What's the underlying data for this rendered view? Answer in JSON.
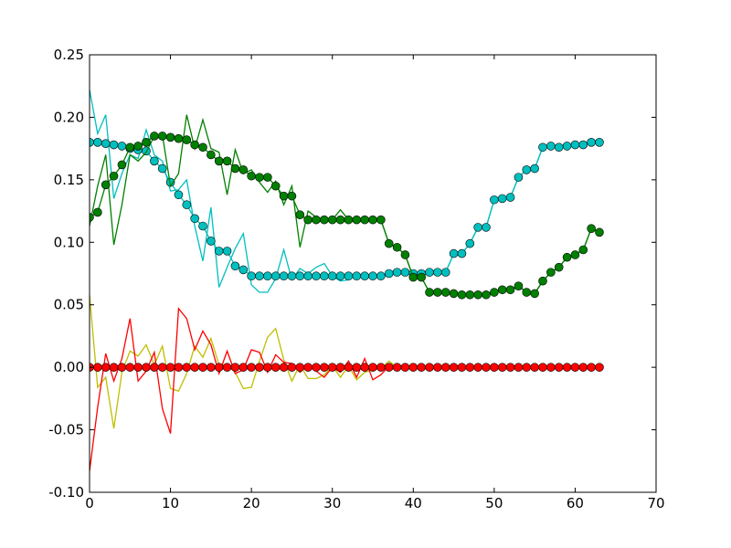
{
  "chart_data": {
    "type": "line",
    "x": [
      0,
      1,
      2,
      3,
      4,
      5,
      6,
      7,
      8,
      9,
      10,
      11,
      12,
      13,
      14,
      15,
      16,
      17,
      18,
      19,
      20,
      21,
      22,
      23,
      24,
      25,
      26,
      27,
      28,
      29,
      30,
      31,
      32,
      33,
      34,
      35,
      36,
      37,
      38,
      39,
      40,
      41,
      42,
      43,
      44,
      45,
      46,
      47,
      48,
      49,
      50,
      51,
      52,
      53,
      54,
      55,
      56,
      57,
      58,
      59,
      60,
      61,
      62,
      63
    ],
    "series": [
      {
        "color": "#00bfbf",
        "values": [
          0.222,
          0.187,
          0.202,
          0.135,
          0.155,
          0.17,
          0.167,
          0.19,
          0.17,
          0.165,
          0.141,
          0.142,
          0.15,
          0.113,
          0.085,
          0.128,
          0.064,
          0.08,
          0.095,
          0.107,
          0.066,
          0.06,
          0.06,
          0.071,
          0.094,
          0.07,
          0.079,
          0.075,
          0.08,
          0.083,
          0.073,
          0.069,
          0.07,
          0.075,
          0.073,
          0.073,
          0.073,
          0.075,
          0.076,
          0.076,
          0.075,
          0.075,
          0.076,
          0.076,
          0.076,
          0.091,
          0.091,
          0.099,
          0.112,
          0.112,
          0.134,
          0.135,
          0.136,
          0.152,
          0.158,
          0.159,
          0.176,
          0.177,
          0.176,
          0.177,
          0.178,
          0.178,
          0.18,
          0.18
        ]
      },
      {
        "color": "#00bfbf",
        "marker": "o",
        "values": [
          0.18,
          0.18,
          0.179,
          0.178,
          0.177,
          0.175,
          0.174,
          0.173,
          0.165,
          0.159,
          0.148,
          0.138,
          0.13,
          0.119,
          0.113,
          0.101,
          0.093,
          0.093,
          0.081,
          0.078,
          0.073,
          0.073,
          0.073,
          0.073,
          0.073,
          0.073,
          0.073,
          0.073,
          0.073,
          0.073,
          0.073,
          0.073,
          0.073,
          0.073,
          0.073,
          0.073,
          0.073,
          0.075,
          0.076,
          0.076,
          0.075,
          0.075,
          0.076,
          0.076,
          0.076,
          0.091,
          0.091,
          0.099,
          0.112,
          0.112,
          0.134,
          0.135,
          0.136,
          0.152,
          0.158,
          0.159,
          0.176,
          0.177,
          0.176,
          0.177,
          0.178,
          0.178,
          0.18,
          0.18
        ]
      },
      {
        "color": "#008000",
        "values": [
          0.113,
          0.145,
          0.17,
          0.098,
          0.13,
          0.17,
          0.165,
          0.172,
          0.185,
          0.186,
          0.145,
          0.155,
          0.202,
          0.175,
          0.198,
          0.175,
          0.172,
          0.138,
          0.174,
          0.155,
          0.158,
          0.148,
          0.14,
          0.149,
          0.13,
          0.145,
          0.096,
          0.125,
          0.12,
          0.118,
          0.118,
          0.126,
          0.118,
          0.116,
          0.118,
          0.118,
          0.118,
          0.099,
          0.096,
          0.09,
          0.072,
          0.072,
          0.06,
          0.06,
          0.06,
          0.059,
          0.058,
          0.058,
          0.058,
          0.058,
          0.06,
          0.062,
          0.062,
          0.065,
          0.06,
          0.059,
          0.069,
          0.076,
          0.08,
          0.088,
          0.09,
          0.094,
          0.111,
          0.108
        ]
      },
      {
        "color": "#008000",
        "marker": "o",
        "values": [
          0.12,
          0.124,
          0.146,
          0.153,
          0.162,
          0.176,
          0.177,
          0.18,
          0.185,
          0.185,
          0.184,
          0.183,
          0.182,
          0.178,
          0.176,
          0.17,
          0.165,
          0.165,
          0.159,
          0.158,
          0.153,
          0.152,
          0.152,
          0.145,
          0.137,
          0.137,
          0.122,
          0.118,
          0.118,
          0.118,
          0.118,
          0.118,
          0.118,
          0.118,
          0.118,
          0.118,
          0.118,
          0.099,
          0.096,
          0.09,
          0.072,
          0.072,
          0.06,
          0.06,
          0.06,
          0.059,
          0.058,
          0.058,
          0.058,
          0.058,
          0.06,
          0.062,
          0.062,
          0.065,
          0.06,
          0.059,
          0.069,
          0.076,
          0.08,
          0.088,
          0.09,
          0.094,
          0.111,
          0.108
        ]
      },
      {
        "color": "#bfbf00",
        "values": [
          0.058,
          -0.016,
          -0.008,
          -0.049,
          -0.004,
          0.013,
          0.009,
          0.018,
          0.002,
          0.017,
          -0.017,
          -0.019,
          -0.005,
          0.017,
          0.008,
          0.023,
          0.002,
          0.002,
          -0.004,
          -0.017,
          -0.016,
          0.005,
          0.024,
          0.031,
          0.006,
          -0.011,
          0.002,
          -0.009,
          -0.009,
          -0.006,
          0.001,
          -0.008,
          0.001,
          -0.01,
          -0.004,
          -0.002,
          -0.001,
          0.005,
          0,
          0,
          0,
          0,
          0,
          0,
          0,
          0,
          0,
          0,
          0,
          0,
          0,
          0,
          0,
          0,
          0,
          0,
          0,
          0,
          0,
          0,
          0,
          0,
          0,
          0
        ]
      },
      {
        "color": "#ff0000",
        "values": [
          -0.083,
          -0.032,
          0.011,
          -0.011,
          0.007,
          0.039,
          -0.011,
          -0.003,
          0.012,
          -0.033,
          -0.053,
          0.047,
          0.039,
          0.014,
          0.029,
          0.018,
          -0.005,
          0.013,
          -0.005,
          -0.002,
          0.014,
          0.012,
          -0.004,
          0.01,
          0.004,
          0.003,
          -0.004,
          0.002,
          -0.003,
          -0.008,
          0,
          -0.004,
          0.005,
          -0.008,
          0.007,
          -0.01,
          -0.006,
          0.001,
          0,
          0,
          0,
          0,
          0,
          0,
          0,
          0,
          0,
          0,
          0,
          0,
          0,
          0,
          0,
          0,
          0,
          0,
          0,
          0,
          0,
          0,
          0,
          0,
          0,
          0
        ]
      },
      {
        "color": "#ff0000",
        "marker": "o",
        "values": [
          0,
          0,
          0,
          0,
          0,
          0,
          0,
          0,
          0,
          0,
          0,
          0,
          0,
          0,
          0,
          0,
          0,
          0,
          0,
          0,
          0,
          0,
          0,
          0,
          0,
          0,
          0,
          0,
          0,
          0,
          0,
          0,
          0,
          0,
          0,
          0,
          0,
          0,
          0,
          0,
          0,
          0,
          0,
          0,
          0,
          0,
          0,
          0,
          0,
          0,
          0,
          0,
          0,
          0,
          0,
          0,
          0,
          0,
          0,
          0,
          0,
          0,
          0,
          0
        ]
      }
    ],
    "xlim": [
      0,
      70
    ],
    "xticks": [
      0,
      10,
      20,
      30,
      40,
      50,
      60,
      70
    ],
    "ylim": [
      -0.1,
      0.25
    ],
    "yticks": [
      {
        "value": -0.1,
        "label": "-0.10"
      },
      {
        "value": -0.05,
        "label": "-0.05"
      },
      {
        "value": 0,
        "label": "0.00"
      },
      {
        "value": 0.05,
        "label": "0.05"
      },
      {
        "value": 0.1,
        "label": "0.10"
      },
      {
        "value": 0.15,
        "label": "0.15"
      },
      {
        "value": 0.2,
        "label": "0.20"
      },
      {
        "value": 0.25,
        "label": "0.25"
      }
    ]
  }
}
